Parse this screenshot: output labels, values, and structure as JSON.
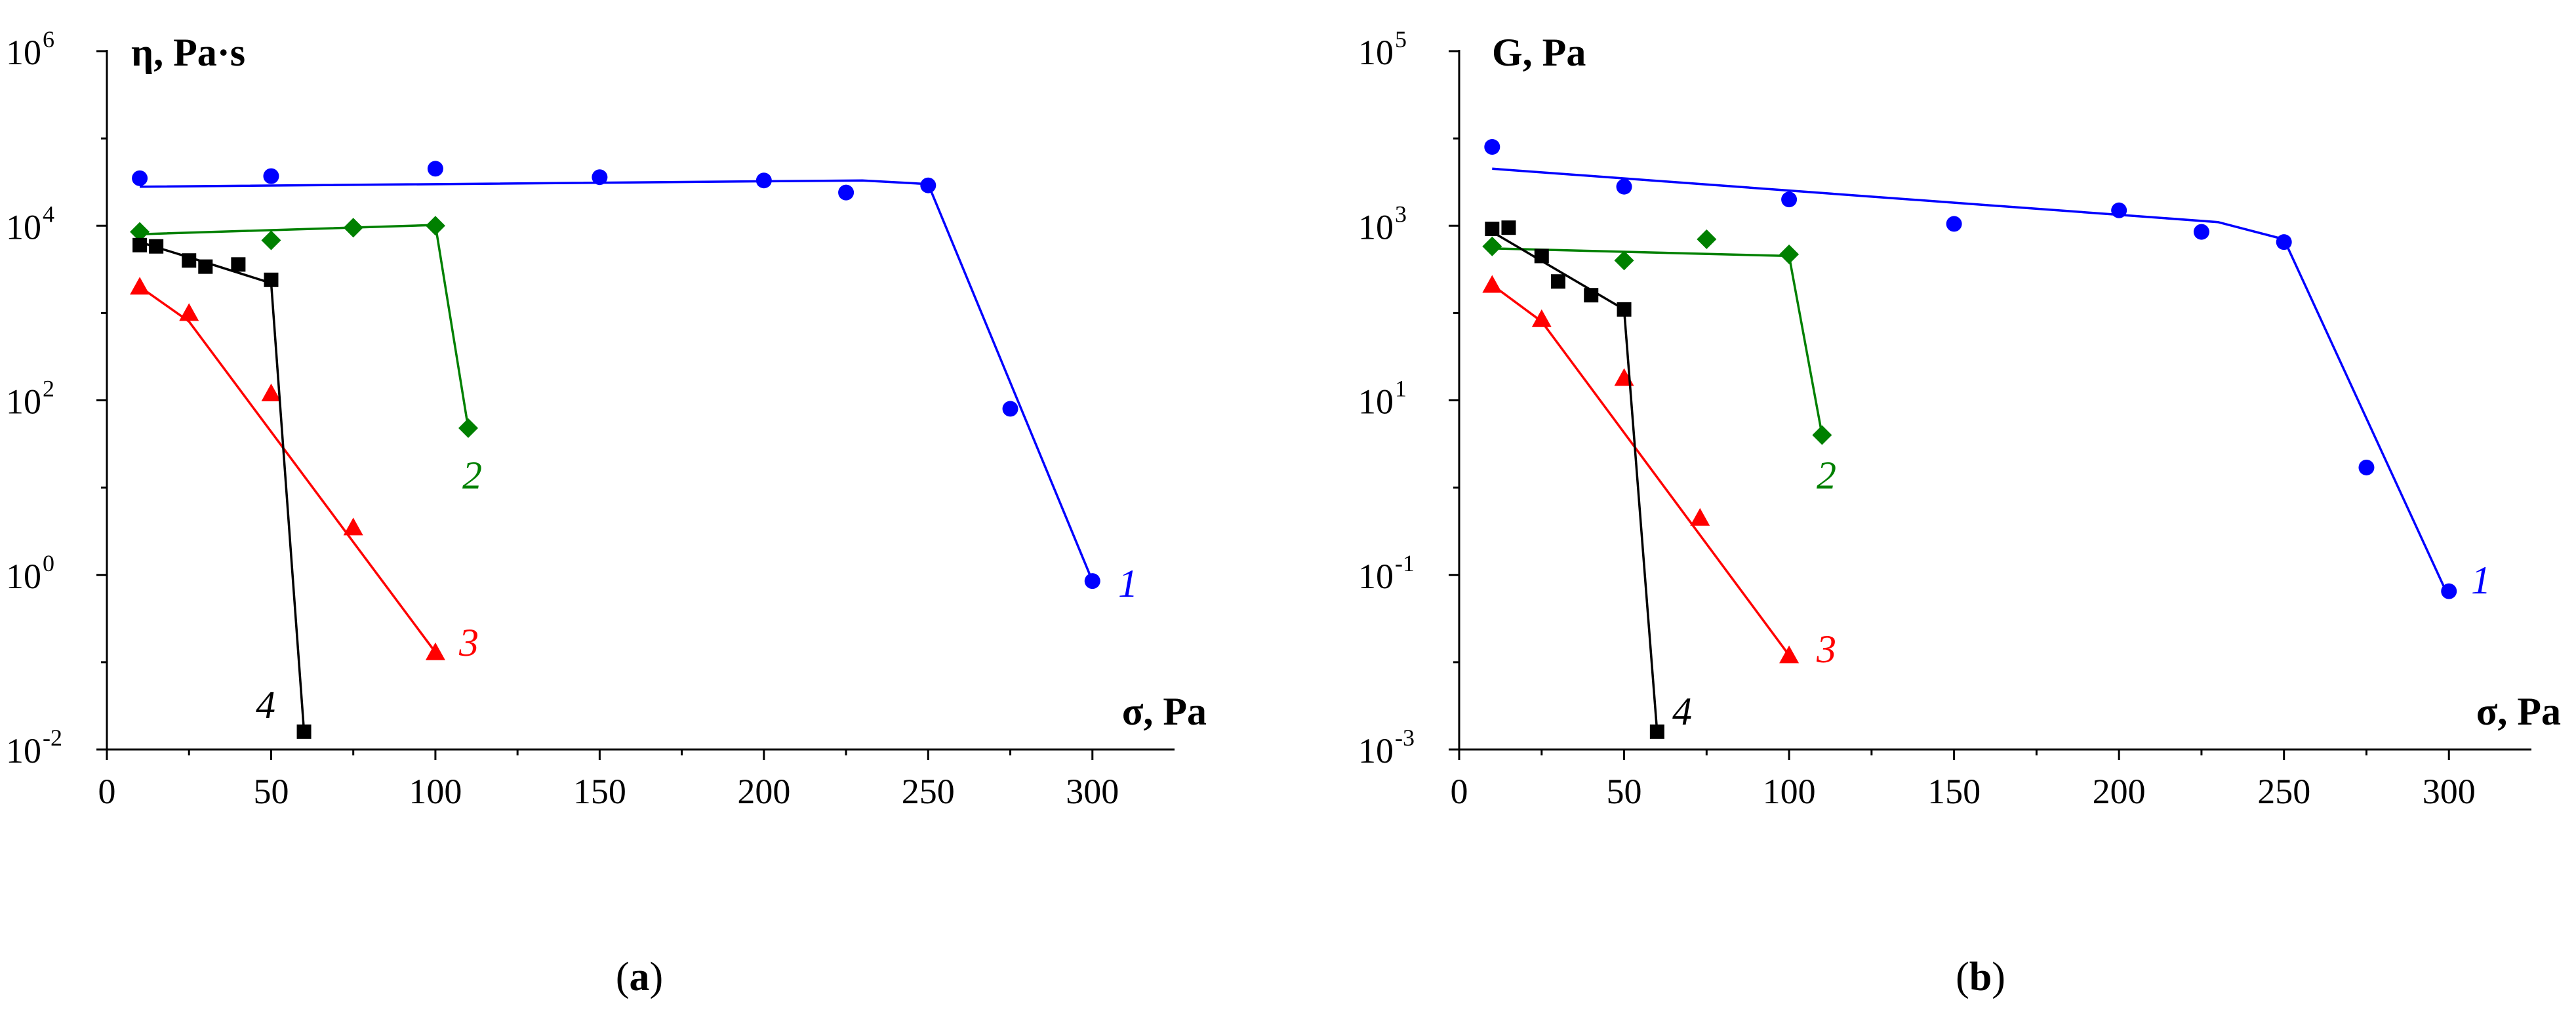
{
  "chart_data": [
    {
      "panel": "a",
      "type": "scatter",
      "ylabel": "η, Pa·s",
      "xlabel": "σ, Pa",
      "yscale": "log",
      "xlim": [
        0,
        325
      ],
      "ylim_exp": [
        -2,
        6
      ],
      "xticks": [
        0,
        50,
        100,
        150,
        200,
        250,
        300
      ],
      "yticks_exp": [
        -2,
        0,
        2,
        4,
        6
      ],
      "ytick_base": "10",
      "panel_label_text": "a",
      "series": [
        {
          "name": "1",
          "color": "#0000ff",
          "marker": "circle",
          "points": [
            [
              10,
              35000
            ],
            [
              50,
              37000
            ],
            [
              100,
              45000
            ],
            [
              150,
              36000
            ],
            [
              200,
              33000
            ],
            [
              225,
              24000
            ],
            [
              250,
              29000
            ],
            [
              275,
              80
            ],
            [
              300,
              0.85
            ]
          ],
          "fit": [
            [
              10,
              28000
            ],
            [
              230,
              33000
            ],
            [
              250,
              30000
            ],
            [
              300,
              0.85
            ]
          ]
        },
        {
          "name": "2",
          "color": "#008000",
          "marker": "diamond",
          "points": [
            [
              10,
              8500
            ],
            [
              50,
              6800
            ],
            [
              75,
              9500
            ],
            [
              100,
              10000
            ],
            [
              110,
              48
            ]
          ],
          "fit": [
            [
              10,
              8000
            ],
            [
              100,
              10200
            ],
            [
              110,
              48
            ]
          ]
        },
        {
          "name": "3",
          "color": "#ff0000",
          "marker": "triangle",
          "points": [
            [
              10,
              2000
            ],
            [
              25,
              1000
            ],
            [
              50,
              120
            ],
            [
              75,
              3.5
            ],
            [
              100,
              0.13
            ]
          ],
          "fit": [
            [
              10,
              2000
            ],
            [
              25,
              800
            ],
            [
              100,
              0.13
            ]
          ]
        },
        {
          "name": "4",
          "color": "#000000",
          "marker": "square",
          "points": [
            [
              10,
              6000
            ],
            [
              15,
              5800
            ],
            [
              25,
              4000
            ],
            [
              30,
              3400
            ],
            [
              40,
              3600
            ],
            [
              50,
              2400
            ],
            [
              60,
              0.016
            ]
          ],
          "fit": [
            [
              10,
              6500
            ],
            [
              30,
              3800
            ],
            [
              50,
              2200
            ],
            [
              60,
              0.016
            ]
          ]
        }
      ]
    },
    {
      "panel": "b",
      "type": "scatter",
      "ylabel": "G, Pa",
      "xlabel": "σ, Pa",
      "yscale": "log",
      "xlim": [
        0,
        325
      ],
      "ylim_exp": [
        -3,
        5
      ],
      "xticks": [
        0,
        50,
        100,
        150,
        200,
        250,
        300
      ],
      "yticks_exp": [
        -3,
        -1,
        1,
        3,
        5
      ],
      "ytick_base": "10",
      "panel_label_text": "b",
      "series": [
        {
          "name": "1",
          "color": "#0000ff",
          "marker": "circle",
          "points": [
            [
              10,
              8000
            ],
            [
              50,
              2800
            ],
            [
              100,
              2000
            ],
            [
              150,
              1050
            ],
            [
              200,
              1500
            ],
            [
              225,
              850
            ],
            [
              250,
              650
            ],
            [
              275,
              1.7
            ],
            [
              300,
              0.065
            ]
          ],
          "fit": [
            [
              10,
              4500
            ],
            [
              230,
              1100
            ],
            [
              250,
              700
            ],
            [
              300,
              0.055
            ]
          ]
        },
        {
          "name": "2",
          "color": "#008000",
          "marker": "diamond",
          "points": [
            [
              10,
              580
            ],
            [
              50,
              400
            ],
            [
              75,
              700
            ],
            [
              100,
              470
            ],
            [
              110,
              4
            ]
          ],
          "fit": [
            [
              10,
              550
            ],
            [
              100,
              450
            ],
            [
              110,
              4
            ]
          ]
        },
        {
          "name": "3",
          "color": "#ff0000",
          "marker": "triangle",
          "points": [
            [
              10,
              210
            ],
            [
              25,
              85
            ],
            [
              50,
              18
            ],
            [
              73,
              0.45
            ],
            [
              100,
              0.012
            ]
          ],
          "fit": [
            [
              10,
              210
            ],
            [
              25,
              80
            ],
            [
              100,
              0.012
            ]
          ]
        },
        {
          "name": "4",
          "color": "#000000",
          "marker": "square",
          "points": [
            [
              10,
              920
            ],
            [
              15,
              950
            ],
            [
              25,
              450
            ],
            [
              30,
              230
            ],
            [
              40,
              160
            ],
            [
              50,
              110
            ],
            [
              60,
              0.0016
            ]
          ],
          "fit": [
            [
              10,
              850
            ],
            [
              50,
              110
            ],
            [
              60,
              0.0016
            ]
          ]
        }
      ]
    }
  ]
}
